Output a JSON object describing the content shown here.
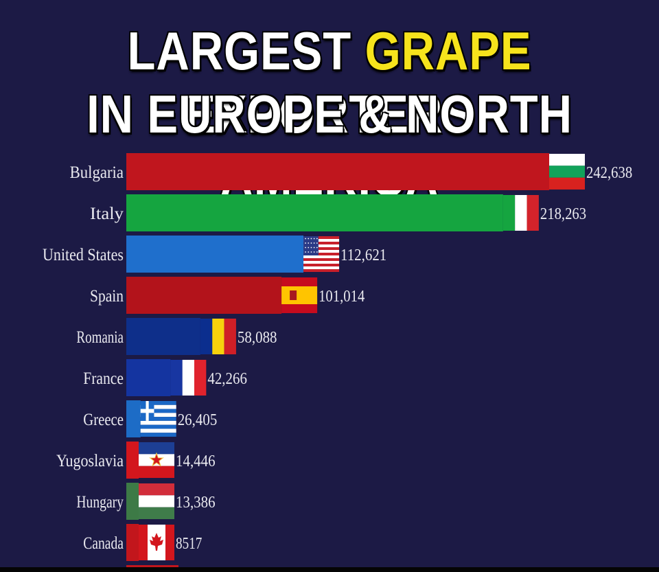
{
  "title": {
    "line1_prefix": "LARGEST",
    "line1_highlight": "GRAPE",
    "line1_suffix": "EXPORTERS",
    "line2": "IN EUROPE & NORTH AMERICA"
  },
  "colors": {
    "background": "#1c1a45",
    "title_text": "#ffffff",
    "title_highlight": "#f6e31c"
  },
  "chart_data": {
    "type": "bar",
    "orientation": "horizontal",
    "categories": [
      "Bulgaria",
      "Italy",
      "United States",
      "Spain",
      "Romania",
      "France",
      "Greece",
      "Yugoslavia",
      "Hungary",
      "Canada"
    ],
    "values": [
      242638,
      218263,
      112621,
      101014,
      58088,
      42266,
      26405,
      14446,
      13386,
      8517
    ],
    "value_labels": [
      "242,638",
      "218,263",
      "112,621",
      "101,014",
      "58,088",
      "42,266",
      "26,405",
      "14,446",
      "13,386",
      "8517"
    ],
    "bar_colors": [
      "#c0161e",
      "#15a540",
      "#1f6fcc",
      "#b3131b",
      "#0e2f8a",
      "#1434a0",
      "#1d6cc6",
      "#d3161d",
      "#3d7a46",
      "#c2161c"
    ],
    "flags": [
      "bulgaria-flag",
      "italy-flag",
      "usa-flag",
      "spain-flag",
      "romania-flag",
      "france-flag",
      "greece-flag",
      "yugoslavia-flag",
      "hungary-flag",
      "canada-flag"
    ],
    "title": "LARGEST GRAPE EXPORTERS IN EUROPE & NORTH AMERICA",
    "xlabel": "",
    "ylabel": "",
    "grid": false,
    "legend": "none"
  }
}
